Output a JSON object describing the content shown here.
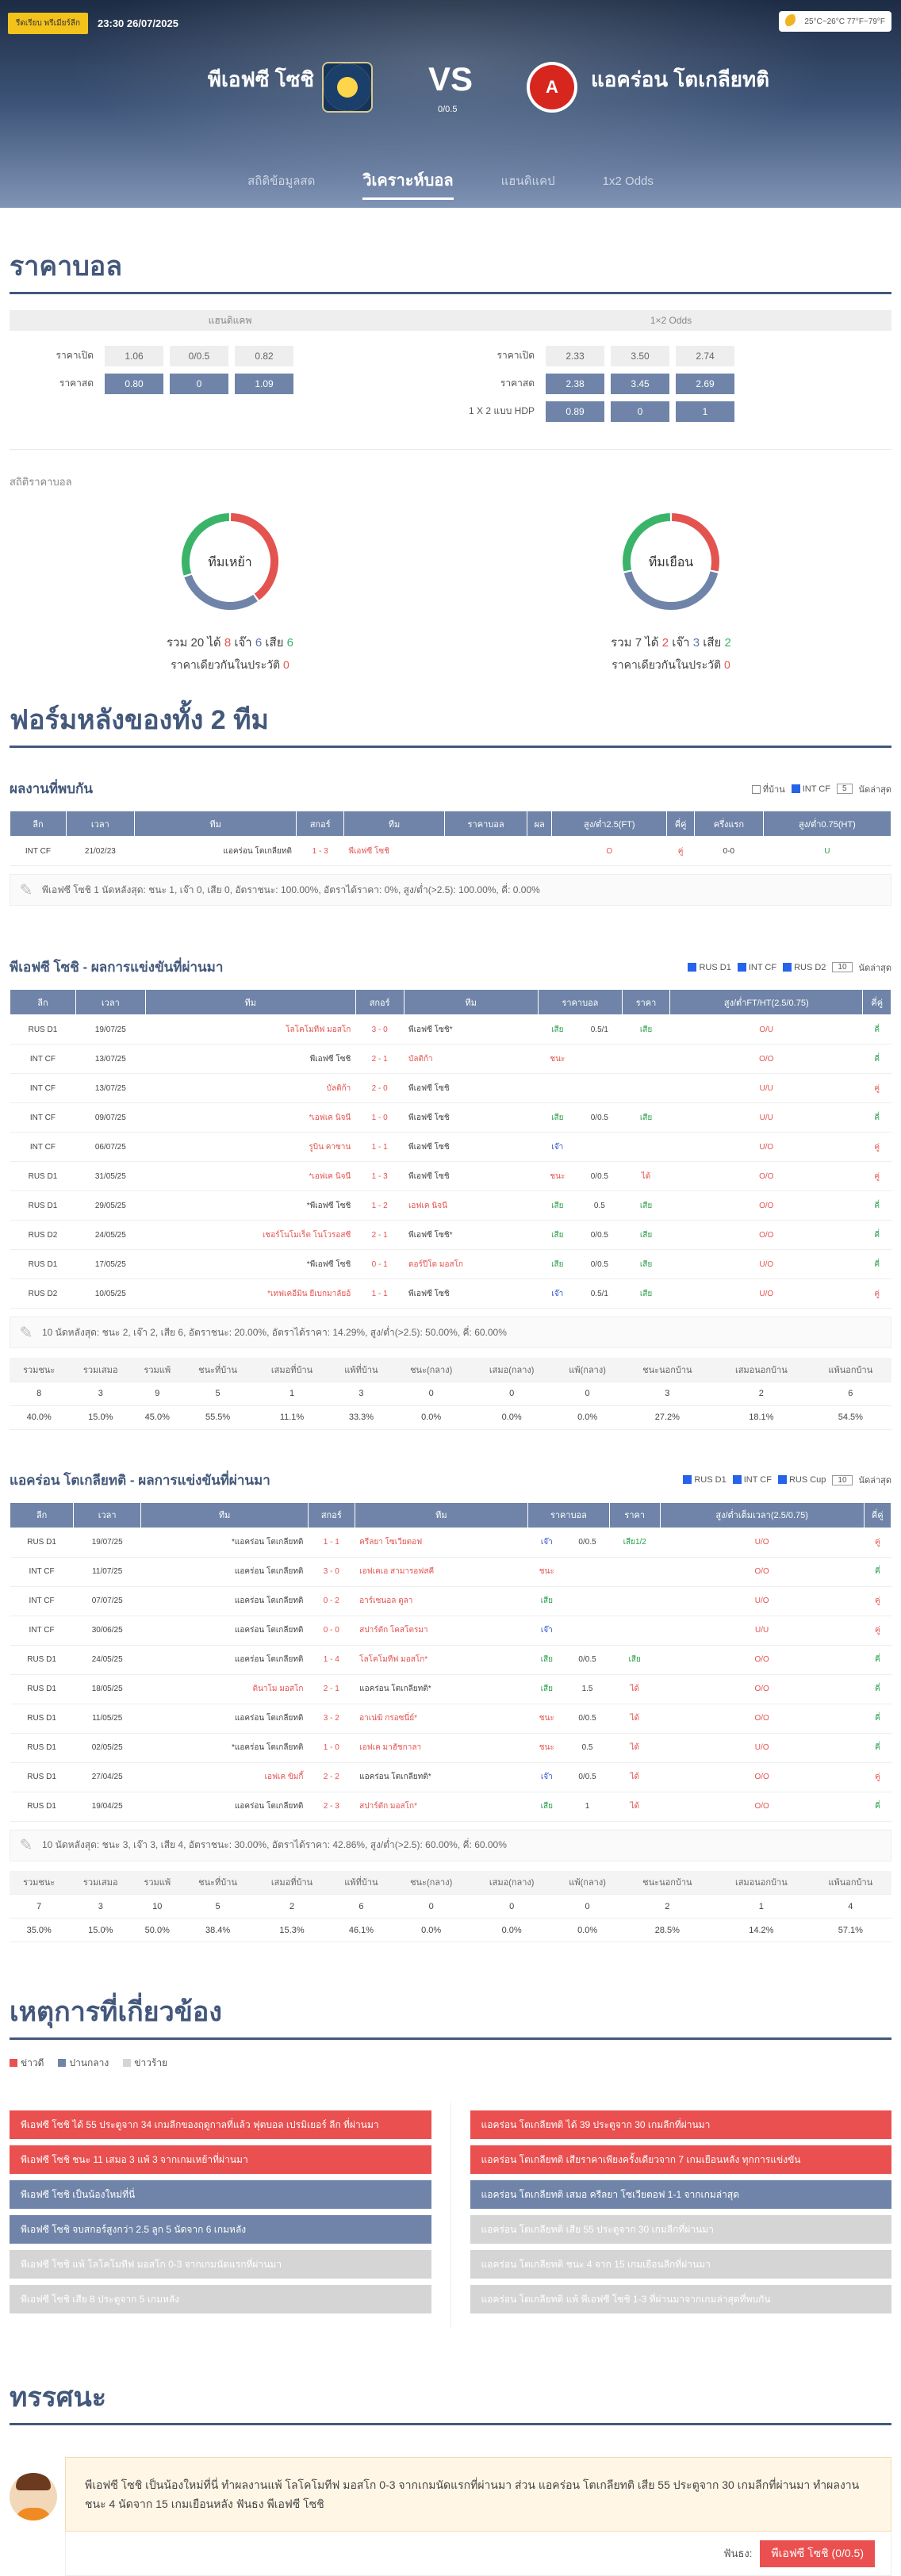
{
  "header": {
    "live_label": "รีดเรียบ พรีเมียร์ลีก",
    "datetime": "23:30 26/07/2025",
    "weather": "25°C~26°C 77°F~79°F",
    "home_team": "พีเอฟซี โซชิ",
    "away_team": "แอคร่อน โตเกลียทติ",
    "home_logo_text": "",
    "away_logo_text": "A",
    "vs": "VS",
    "handicap": "0/0.5",
    "tabs": [
      "สถิติข้อมูลสด",
      "วิเคราะห์บอล",
      "แฮนดิแคป",
      "1x2 Odds"
    ]
  },
  "odds": {
    "title": "ราคาบอล",
    "head_left": "แฮนดิแคพ",
    "head_right": "1×2 Odds",
    "left_rows": [
      {
        "label": "ราคาเปิด",
        "cells": [
          "1.06",
          "0/0.5",
          "0.82"
        ],
        "dark": false
      },
      {
        "label": "ราคาสด",
        "cells": [
          "0.80",
          "0",
          "1.09"
        ],
        "dark": true
      }
    ],
    "right_rows": [
      {
        "label": "ราคาเปิด",
        "cells": [
          "2.33",
          "3.50",
          "2.74"
        ],
        "dark": false
      },
      {
        "label": "ราคาสด",
        "cells": [
          "2.38",
          "3.45",
          "2.69"
        ],
        "dark": true
      },
      {
        "label": "1 X 2 แบบ HDP",
        "cells": [
          "0.89",
          "0",
          "1"
        ],
        "dark": true
      }
    ]
  },
  "odds_stats": {
    "label": "สถิติราคาบอล",
    "home": {
      "center": "ทีมเหย้า",
      "total_label": "รวม",
      "total": "20",
      "win_label": "ได้",
      "win": "8",
      "draw_label": "เจ๊า",
      "draw": "6",
      "loss_label": "เสีย",
      "loss": "6",
      "void_label": "ราคาเดียวกันในประวัติ",
      "void": "0",
      "colors": [
        "#e3534f",
        "#6f84a8",
        "#3bb46a"
      ],
      "values": [
        8,
        6,
        6
      ]
    },
    "away": {
      "center": "ทีมเยือน",
      "total_label": "รวม",
      "total": "7",
      "win_label": "ได้",
      "win": "2",
      "draw_label": "เจ๊า",
      "draw": "3",
      "loss_label": "เสีย",
      "loss": "2",
      "void_label": "ราคาเดียวกันในประวัติ",
      "void": "0",
      "colors": [
        "#e3534f",
        "#6f84a8",
        "#3bb46a"
      ],
      "values": [
        2,
        3,
        2
      ]
    }
  },
  "form_title": "ฟอร์มหลังของทั้ง 2 ทีม",
  "h2h": {
    "title": "ผลงานที่พบกัน",
    "filters": [
      "ที่บ้าน",
      "INT CF"
    ],
    "select": "5",
    "suffix": "นัดล่าสุด",
    "columns": [
      "ลีก",
      "เวลา",
      "ทีม",
      "สกอร์",
      "ทีม",
      "ราคาบอล",
      "ผล",
      "สูง/ต่ำ2.5(FT)",
      "คี่คู่",
      "ครึ่งแรก",
      "สูง/ต่ำ0.75(HT)"
    ],
    "rows": [
      [
        "INT CF",
        "21/02/23",
        "แอคร่อน โตเกลียทติ",
        "1 - 3",
        "พีเอฟซี โซชิ",
        "",
        "",
        "O",
        "คู่",
        "0-0",
        "U"
      ]
    ],
    "note": "พีเอฟซี โซชิ 1 นัดหลังสุด: ชนะ 1, เจ๊า 0, เสีย 0, อัตราชนะ: 100.00%, อัตราได้ราคา: 0%, สูง/ต่ำ(>2.5): 100.00%, คี่: 0.00%"
  },
  "home_recent": {
    "title": "พีเอฟซี โซชิ - ผลการแข่งขันที่ผ่านมา",
    "filters": [
      "RUS D1",
      "INT CF",
      "RUS D2"
    ],
    "select": "10",
    "suffix": "นัดล่าสุด",
    "columns": [
      "ลีก",
      "เวลา",
      "ทีม",
      "สกอร์",
      "ทีม",
      "ราคาบอล",
      "ราคา",
      "สูง/ต่ำFT/HT(2.5/0.75)",
      "คี่คู่"
    ],
    "rows": [
      [
        "RUS D1",
        "19/07/25",
        "โลโคโมทีฟ มอสโก",
        "3 - 0",
        "พีเอฟซี โซชิ*",
        "เสีย",
        "0.5/1",
        "เสีย",
        "O/U",
        "คี่"
      ],
      [
        "INT CF",
        "13/07/25",
        "พีเอฟซี โซชิ",
        "2 - 1",
        "บัลติก้า",
        "ชนะ",
        "",
        "",
        "O/O",
        "คี่"
      ],
      [
        "INT CF",
        "13/07/25",
        "บัลติก้า",
        "2 - 0",
        "พีเอฟซี โซชิ",
        "",
        "",
        "",
        "U/U",
        "คู่"
      ],
      [
        "INT CF",
        "09/07/25",
        "*เอฟเค นิจนี",
        "1 - 0",
        "พีเอฟซี โซชิ",
        "เสีย",
        "0/0.5",
        "เสีย",
        "U/U",
        "คี่"
      ],
      [
        "INT CF",
        "06/07/25",
        "รูบิน คาซาน",
        "1 - 1",
        "พีเอฟซี โซชิ",
        "เจ๊า",
        "",
        "",
        "U/O",
        "คู่"
      ],
      [
        "RUS D1",
        "31/05/25",
        "*เอฟเค นิจนี",
        "1 - 3",
        "พีเอฟซี โซชิ",
        "ชนะ",
        "0/0.5",
        "ได้",
        "O/O",
        "คู่"
      ],
      [
        "RUS D1",
        "29/05/25",
        "*พีเอฟซี โซชิ",
        "1 - 2",
        "เอฟเค นิจนี",
        "เสีย",
        "0.5",
        "เสีย",
        "O/O",
        "คี่"
      ],
      [
        "RUS D2",
        "24/05/25",
        "เชอร์โนโมเร็ต โนโวรอสซี",
        "2 - 1",
        "พีเอฟซี โซชิ*",
        "เสีย",
        "0/0.5",
        "เสีย",
        "O/O",
        "คี่"
      ],
      [
        "RUS D1",
        "17/05/25",
        "*พีเอฟซี โซชิ",
        "0 - 1",
        "ดอร์ปีโด มอสโก",
        "เสีย",
        "0/0.5",
        "เสีย",
        "U/O",
        "คี่"
      ],
      [
        "RUS D2",
        "10/05/25",
        "*เทฟเคอีมิน ยีเบกมาลัยอ้",
        "1 - 1",
        "พีเอฟซี โซชิ",
        "เจ๊า",
        "0.5/1",
        "เสีย",
        "U/O",
        "คู่"
      ]
    ],
    "note": "10 นัดหลังสุด: ชนะ 2, เจ๊า 2, เสีย 6, อัตราชนะ: 20.00%, อัตราได้ราคา: 14.29%, สูง/ต่ำ(>2.5): 50.00%, คี่: 60.00%",
    "summary_head": [
      "รวมชนะ",
      "รวมเสมอ",
      "รวมแพ้",
      "ชนะที่บ้าน",
      "เสมอที่บ้าน",
      "แพ้ที่บ้าน",
      "ชนะ(กลาง)",
      "เสมอ(กลาง)",
      "แพ้(กลาง)",
      "ชนะนอกบ้าน",
      "เสมอนอกบ้าน",
      "แพ้นอกบ้าน"
    ],
    "summary_counts": [
      "8",
      "3",
      "9",
      "5",
      "1",
      "3",
      "0",
      "0",
      "0",
      "3",
      "2",
      "6"
    ],
    "summary_pct": [
      "40.0%",
      "15.0%",
      "45.0%",
      "55.5%",
      "11.1%",
      "33.3%",
      "0.0%",
      "0.0%",
      "0.0%",
      "27.2%",
      "18.1%",
      "54.5%"
    ]
  },
  "away_recent": {
    "title": "แอคร่อน โตเกลียทติ - ผลการแข่งขันที่ผ่านมา",
    "filters": [
      "RUS D1",
      "INT CF",
      "RUS Cup"
    ],
    "select": "10",
    "suffix": "นัดล่าสุด",
    "columns": [
      "ลีก",
      "เวลา",
      "ทีม",
      "สกอร์",
      "ทีม",
      "ราคาบอล",
      "ราคา",
      "สูง/ต่ำเต็มเวลา(2.5/0.75)",
      "คี่คู่"
    ],
    "rows": [
      [
        "RUS D1",
        "19/07/25",
        "*แอคร่อน โตเกลียทติ",
        "1 - 1",
        "ครีลยา โซเวียตอฟ",
        "เจ๊า",
        "0/0.5",
        "เสีย1/2",
        "U/O",
        "คู่"
      ],
      [
        "INT CF",
        "11/07/25",
        "แอคร่อน โตเกลียทติ",
        "3 - 0",
        "เอฟเคเอ สามารอฟสคี",
        "ชนะ",
        "",
        "",
        "O/O",
        "คี่"
      ],
      [
        "INT CF",
        "07/07/25",
        "แอคร่อน โตเกลียทติ",
        "0 - 2",
        "อาร์เซนอล ตูลา",
        "เสีย",
        "",
        "",
        "U/O",
        "คู่"
      ],
      [
        "INT CF",
        "30/06/25",
        "แอคร่อน โตเกลียทติ",
        "0 - 0",
        "สปาร์ตัก โคสโตรมา",
        "เจ๊า",
        "",
        "",
        "U/U",
        "คู่"
      ],
      [
        "RUS D1",
        "24/05/25",
        "แอคร่อน โตเกลียทติ",
        "1 - 4",
        "โลโคโมทีฟ มอสโก*",
        "เสีย",
        "0/0.5",
        "เสีย",
        "O/O",
        "คี่"
      ],
      [
        "RUS D1",
        "18/05/25",
        "ดินาโม มอสโก",
        "2 - 1",
        "แอคร่อน โตเกลียทติ*",
        "เสีย",
        "1.5",
        "ได้",
        "O/O",
        "คี่"
      ],
      [
        "RUS D1",
        "11/05/25",
        "แอคร่อน โตเกลียทติ",
        "3 - 2",
        "อาเน่ฆิ กรอซนี่ย์*",
        "ชนะ",
        "0/0.5",
        "ได้",
        "O/O",
        "คี่"
      ],
      [
        "RUS D1",
        "02/05/25",
        "*แอคร่อน โตเกลียทติ",
        "1 - 0",
        "เอฟเค มาฮัชกาลา",
        "ชนะ",
        "0.5",
        "ได้",
        "U/O",
        "คี่"
      ],
      [
        "RUS D1",
        "27/04/25",
        "เอฟเค ขิมกี้",
        "2 - 2",
        "แอคร่อน โตเกลียทติ*",
        "เจ๊า",
        "0/0.5",
        "ได้",
        "O/O",
        "คู่"
      ],
      [
        "RUS D1",
        "19/04/25",
        "แอคร่อน โตเกลียทติ",
        "2 - 3",
        "สปาร์ตัก มอสโก*",
        "เสีย",
        "1",
        "ได้",
        "O/O",
        "คี่"
      ]
    ],
    "note": "10 นัดหลังสุด: ชนะ 3, เจ๊า 3, เสีย 4, อัตราชนะ: 30.00%, อัตราได้ราคา: 42.86%, สูง/ต่ำ(>2.5): 60.00%, คี่: 60.00%",
    "summary_head": [
      "รวมชนะ",
      "รวมเสมอ",
      "รวมแพ้",
      "ชนะที่บ้าน",
      "เสมอที่บ้าน",
      "แพ้ที่บ้าน",
      "ชนะ(กลาง)",
      "เสมอ(กลาง)",
      "แพ้(กลาง)",
      "ชนะนอกบ้าน",
      "เสมอนอกบ้าน",
      "แพ้นอกบ้าน"
    ],
    "summary_counts": [
      "7",
      "3",
      "10",
      "5",
      "2",
      "6",
      "0",
      "0",
      "0",
      "2",
      "1",
      "4"
    ],
    "summary_pct": [
      "35.0%",
      "15.0%",
      "50.0%",
      "38.4%",
      "15.3%",
      "46.1%",
      "0.0%",
      "0.0%",
      "0.0%",
      "28.5%",
      "14.2%",
      "57.1%"
    ]
  },
  "events": {
    "title": "เหตุการที่เกี่ยวข้อง",
    "legend": [
      {
        "label": "ข่าวดี",
        "color": "#e9504f"
      },
      {
        "label": "ปานกลาง",
        "color": "#6f84a8"
      },
      {
        "label": "ข่าวร้าย",
        "color": "#d5d5d5"
      }
    ],
    "left": [
      {
        "text": "พีเอฟซี โซชิ ได้ 55 ประตูจาก 34 เกมลีกของฤดูกาลที่แล้ว ฟุตบอล เปรมิเยอร์ ลีก ที่ผ่านมา",
        "type": "red"
      },
      {
        "text": "พีเอฟซี โซชิ ชนะ 11 เสมอ 3 แพ้ 3 จากเกมเหย้าที่ผ่านมา",
        "type": "red"
      },
      {
        "text": "พีเอฟซี โซชิ เป็นน้องใหม่ที่นี่",
        "type": "mid"
      },
      {
        "text": "พีเอฟซี โซชิ จบสกอร์สูงกว่า 2.5 ลูก 5 นัดจาก 6 เกมหลัง",
        "type": "mid"
      },
      {
        "text": "พีเอฟซี โซชิ แพ้ โลโคโมทีฟ มอสโก 0-3 จากเกมนัดแรกที่ผ่านมา",
        "type": "light"
      },
      {
        "text": "พีเอฟซี โซชิ เสีย 8 ประตูจาก 5 เกมหลัง",
        "type": "light"
      }
    ],
    "right": [
      {
        "text": "แอคร่อน โตเกลียทติ ได้ 39 ประตูจาก 30 เกมลีกที่ผ่านมา",
        "type": "red"
      },
      {
        "text": "แอคร่อน โตเกลียทติ เสียราคาเพียงครั้งเดียวจาก 7 เกมเยือนหลัง ทุกการแข่งขัน",
        "type": "red"
      },
      {
        "text": "แอคร่อน โตเกลียทติ เสมอ ครีลยา โซเวียตอฟ 1-1 จากเกมล่าสุด",
        "type": "mid"
      },
      {
        "text": "แอคร่อน โตเกลียทติ เสีย 55 ประตูจาก 30 เกมลีกที่ผ่านมา",
        "type": "light"
      },
      {
        "text": "แอคร่อน โตเกลียทติ ชนะ 4 จาก 15 เกมเยือนลีกที่ผ่านมา",
        "type": "light"
      },
      {
        "text": "แอคร่อน โตเกลียทติ แพ้ พีเอฟซี โซชิ 1-3 ที่ผ่านมาจากเกมล่าสุดที่พบกัน",
        "type": "light"
      }
    ]
  },
  "opinion": {
    "title": "ทรรศนะ",
    "text": "พีเอฟซี โซชิ เป็นน้องใหม่ที่นี่ ทำผลงานแพ้ โลโคโมทีฟ มอสโก 0-3 จากเกมนัดแรกที่ผ่านมา ส่วน แอคร่อน โตเกลียทติ เสีย 55 ประตูจาก 30 เกมลีกที่ผ่านมา ทำผลงานชนะ 4 นัดจาก 15 เกมเยือนหลัง ฟันธง พีเอฟซี โซชิ",
    "pick_label": "ฟันธง:",
    "pick": "พีเอฟซี โซชิ (0/0.5)"
  }
}
